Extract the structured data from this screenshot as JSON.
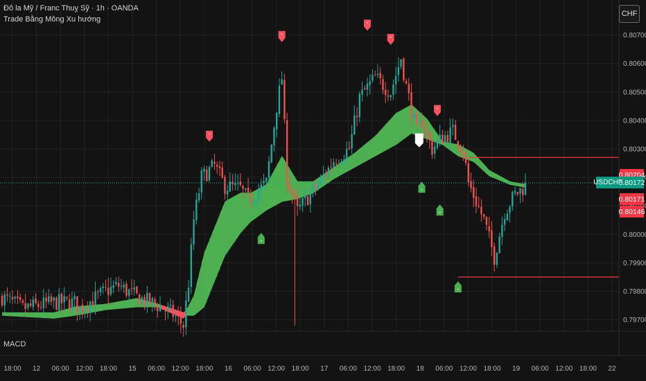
{
  "header": {
    "title": "Đô la Mỹ / Franc Thuỵ Sỹ · 1h · OANDA",
    "indicator": "Trade Bằng Mông Xu hướng"
  },
  "currency_button": "CHF",
  "pane2_label": "MACD",
  "symbol_tag": "USDCHF",
  "price_tags": [
    {
      "label": "0.80204",
      "value": 0.80204,
      "color": "#f23645"
    },
    {
      "label": "0.80172",
      "value": 0.80172,
      "color": "#089981"
    },
    {
      "label": "0.80171",
      "value": 0.80171,
      "color": "#f23645"
    },
    {
      "label": "0.80146",
      "value": 0.80146,
      "color": "#f23645"
    }
  ],
  "colors": {
    "up": "#26a69a",
    "down": "#ef5350",
    "cloud_bull": "#4caf50",
    "cloud_bear": "#f7525f",
    "background": "#131313",
    "grid": "#222222"
  },
  "chart_data": {
    "type": "candlestick",
    "ylim": [
      0.7966,
      0.8075
    ],
    "y_ticks": [
      "0.80700",
      "0.80600",
      "0.80500",
      "0.80400",
      "0.80300",
      "0.80200",
      "0.80100",
      "0.80000",
      "0.79900",
      "0.79800",
      "0.79700"
    ],
    "x_ticks": [
      "18:00",
      "12",
      "06:00",
      "12:00",
      "18:00",
      "15",
      "06:00",
      "12:00",
      "18:00",
      "16",
      "06:00",
      "12:00",
      "18:00",
      "17",
      "06:00",
      "12:00",
      "18:00",
      "18",
      "06:00",
      "12:00",
      "18:00",
      "19",
      "06:00",
      "12:00",
      "18:00",
      "22"
    ],
    "anchors": [
      [
        0,
        0.7978
      ],
      [
        8,
        0.7974
      ],
      [
        20,
        0.7976
      ],
      [
        28,
        0.7976
      ],
      [
        30,
        0.7974
      ],
      [
        40,
        0.798
      ],
      [
        45,
        0.7982
      ],
      [
        52,
        0.7978
      ],
      [
        60,
        0.7975
      ],
      [
        66,
        0.7972
      ],
      [
        70,
        0.7968
      ],
      [
        72,
        0.7983
      ],
      [
        74,
        0.8005
      ],
      [
        77,
        0.802
      ],
      [
        82,
        0.8024
      ],
      [
        86,
        0.8017
      ],
      [
        92,
        0.8016
      ],
      [
        95,
        0.8012
      ],
      [
        102,
        0.8018
      ],
      [
        106,
        0.8045
      ],
      [
        108,
        0.8055
      ],
      [
        110,
        0.802
      ],
      [
        114,
        0.8008
      ],
      [
        118,
        0.8013
      ],
      [
        124,
        0.802
      ],
      [
        128,
        0.8026
      ],
      [
        134,
        0.803
      ],
      [
        138,
        0.8048
      ],
      [
        144,
        0.8055
      ],
      [
        150,
        0.805
      ],
      [
        154,
        0.8062
      ],
      [
        156,
        0.8052
      ],
      [
        160,
        0.8036
      ],
      [
        162,
        0.804
      ],
      [
        166,
        0.803
      ],
      [
        170,
        0.8034
      ],
      [
        174,
        0.8036
      ],
      [
        178,
        0.803
      ],
      [
        180,
        0.8018
      ],
      [
        186,
        0.8005
      ],
      [
        190,
        0.7992
      ],
      [
        194,
        0.8008
      ],
      [
        198,
        0.8014
      ],
      [
        202,
        0.8017
      ]
    ],
    "cloud_fast": [
      [
        0,
        0.7972
      ],
      [
        20,
        0.7972
      ],
      [
        28,
        0.7974
      ],
      [
        40,
        0.7975
      ],
      [
        52,
        0.7977
      ],
      [
        60,
        0.7975
      ],
      [
        70,
        0.7971
      ],
      [
        74,
        0.7978
      ],
      [
        78,
        0.7993
      ],
      [
        86,
        0.8011
      ],
      [
        92,
        0.8014
      ],
      [
        96,
        0.8014
      ],
      [
        102,
        0.8017
      ],
      [
        108,
        0.8027
      ],
      [
        114,
        0.8018
      ],
      [
        120,
        0.8018
      ],
      [
        128,
        0.8023
      ],
      [
        136,
        0.8028
      ],
      [
        144,
        0.8034
      ],
      [
        152,
        0.8042
      ],
      [
        158,
        0.8045
      ],
      [
        164,
        0.804
      ],
      [
        170,
        0.8032
      ],
      [
        176,
        0.8031
      ],
      [
        182,
        0.8028
      ],
      [
        188,
        0.8022
      ],
      [
        196,
        0.8018
      ],
      [
        202,
        0.8017
      ]
    ],
    "cloud_slow": [
      [
        0,
        0.7972
      ],
      [
        20,
        0.7971
      ],
      [
        28,
        0.7972
      ],
      [
        40,
        0.7974
      ],
      [
        52,
        0.7975
      ],
      [
        60,
        0.7975
      ],
      [
        70,
        0.7972
      ],
      [
        74,
        0.7972
      ],
      [
        78,
        0.7975
      ],
      [
        86,
        0.7993
      ],
      [
        92,
        0.8001
      ],
      [
        96,
        0.8005
      ],
      [
        102,
        0.8009
      ],
      [
        108,
        0.8012
      ],
      [
        114,
        0.8013
      ],
      [
        120,
        0.8015
      ],
      [
        128,
        0.802
      ],
      [
        136,
        0.8024
      ],
      [
        144,
        0.8028
      ],
      [
        152,
        0.8032
      ],
      [
        158,
        0.8036
      ],
      [
        164,
        0.8034
      ],
      [
        170,
        0.8032
      ],
      [
        176,
        0.8028
      ],
      [
        182,
        0.8026
      ],
      [
        188,
        0.8021
      ],
      [
        196,
        0.8018
      ],
      [
        202,
        0.8017
      ]
    ],
    "markers": [
      {
        "type": "sell",
        "i": 80,
        "y": 0.8033
      },
      {
        "type": "sell",
        "i": 108,
        "y": 0.8068
      },
      {
        "type": "sell",
        "i": 141,
        "y": 0.8072
      },
      {
        "type": "sell",
        "i": 150,
        "y": 0.8067
      },
      {
        "type": "sell",
        "i": 168,
        "y": 0.8042
      },
      {
        "type": "buy",
        "i": 100,
        "y": 0.8
      },
      {
        "type": "buy",
        "i": 162,
        "y": 0.8018
      },
      {
        "type": "buy",
        "i": 169,
        "y": 0.801
      },
      {
        "type": "buy",
        "i": 176,
        "y": 0.7983
      }
    ],
    "level_lines": [
      0.8027,
      0.7985
    ]
  }
}
